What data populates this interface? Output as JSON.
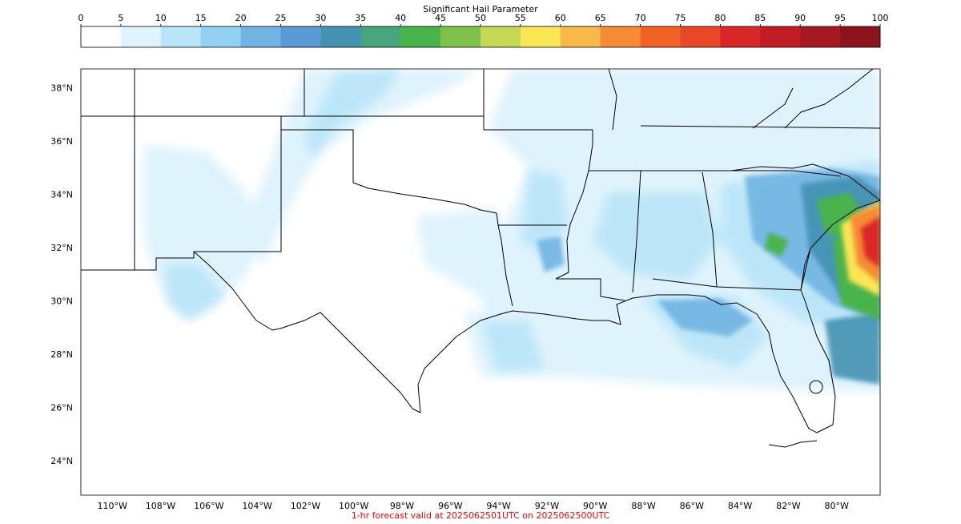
{
  "colorbar": {
    "title": "Significant Hail Parameter",
    "ticks": [
      "0",
      "5",
      "10",
      "15",
      "20",
      "25",
      "30",
      "35",
      "40",
      "45",
      "50",
      "55",
      "60",
      "65",
      "70",
      "75",
      "80",
      "85",
      "90",
      "95",
      "100"
    ],
    "colors": [
      "#ffffff",
      "#dff3fd",
      "#b9e5f8",
      "#92d1f2",
      "#71b4e3",
      "#5a9bd6",
      "#4392b2",
      "#47a47b",
      "#48b44c",
      "#7fc14a",
      "#c4d856",
      "#fbe655",
      "#f8b84a",
      "#f58b34",
      "#f26128",
      "#e84827",
      "#d92628",
      "#c11d25",
      "#a61923",
      "#8c141c"
    ]
  },
  "map": {
    "lat_labels": [
      "38°N",
      "36°N",
      "34°N",
      "32°N",
      "30°N",
      "28°N",
      "26°N",
      "24°N"
    ],
    "lon_labels": [
      "110°W",
      "108°W",
      "106°W",
      "104°W",
      "102°W",
      "100°W",
      "98°W",
      "96°W",
      "94°W",
      "92°W",
      "90°W",
      "88°W",
      "86°W",
      "84°W",
      "82°W",
      "80°W"
    ],
    "extent": {
      "lon_min": -111.3,
      "lon_max": -78.2,
      "lat_min": 22.7,
      "lat_max": 38.7
    }
  },
  "footer": {
    "caption": "1-hr forecast valid at 2025062501UTC on 2025062500UTC",
    "caption_color": "#ff0000"
  }
}
